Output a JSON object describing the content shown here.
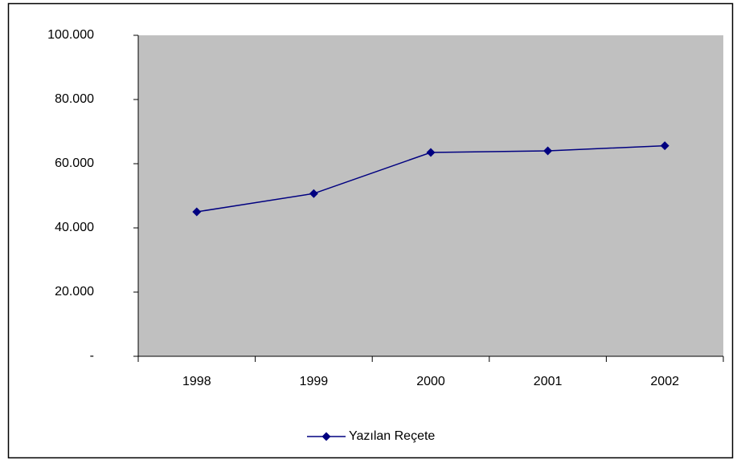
{
  "chart_data": {
    "type": "line",
    "categories": [
      "1998",
      "1999",
      "2000",
      "2001",
      "2002"
    ],
    "series": [
      {
        "name": "Yazılan Reçete",
        "color": "#000080",
        "values": [
          45000,
          50700,
          63500,
          64000,
          65600
        ]
      }
    ],
    "ylim": [
      0,
      100000
    ],
    "yticks": [
      {
        "value": 0,
        "label": "-"
      },
      {
        "value": 20000,
        "label": "20.000"
      },
      {
        "value": 40000,
        "label": "40.000"
      },
      {
        "value": 60000,
        "label": "60.000"
      },
      {
        "value": 80000,
        "label": "80.000"
      },
      {
        "value": 100000,
        "label": "100.000"
      }
    ],
    "grid": false,
    "plot_background": "#c0c0c0",
    "legend": "bottom"
  }
}
